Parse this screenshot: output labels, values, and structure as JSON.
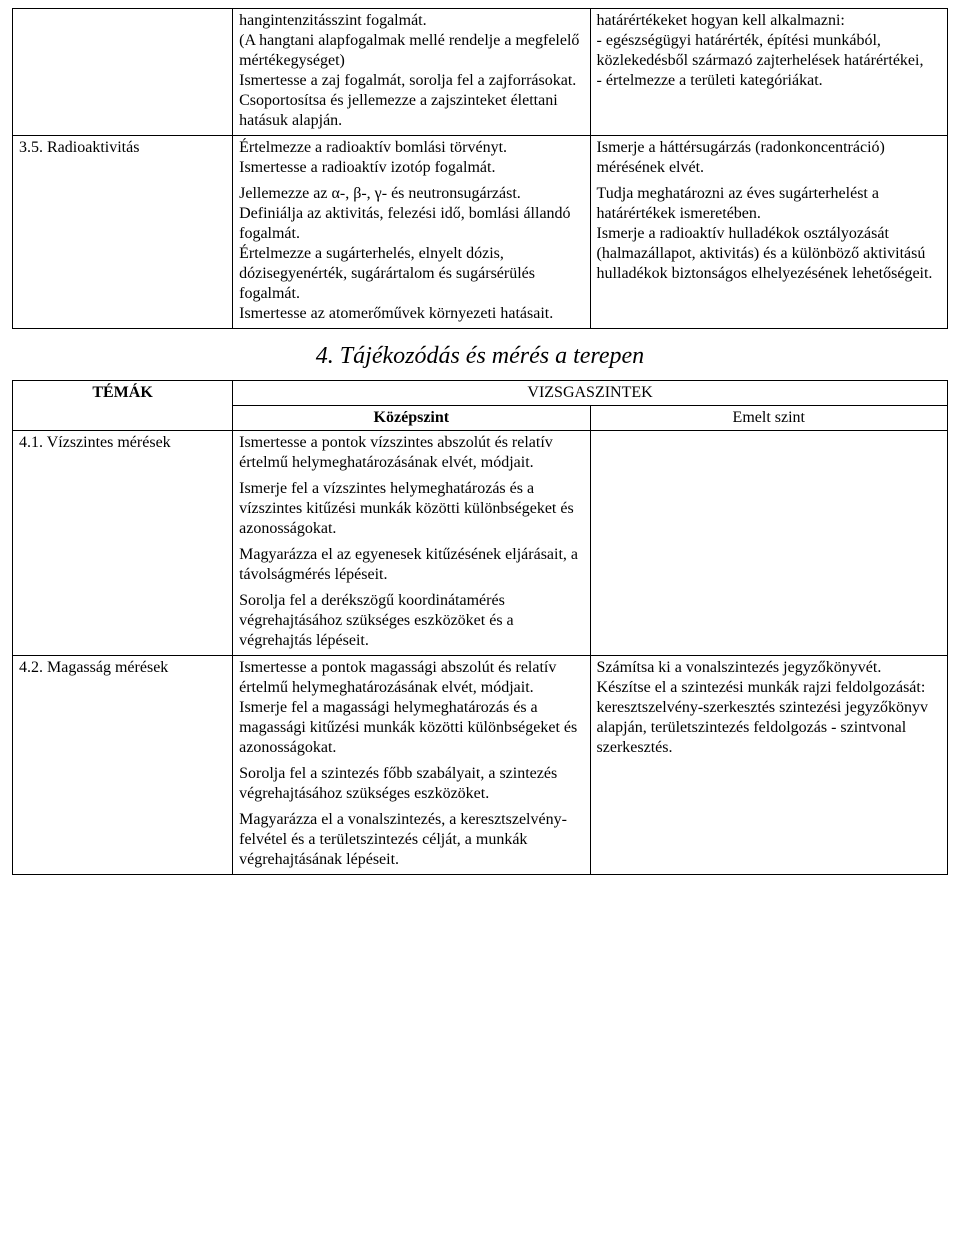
{
  "table1": {
    "row1": {
      "mid": "hangintenzitásszint fogalmát.\n(A hangtani alapfogalmak mellé rendelje a megfelelő mértékegységet)\nIsmertesse a zaj fogalmát, sorolja fel a zajforrásokat.\nCsoportosítsa és jellemezze a zajszinteket élettani hatásuk alapján.",
      "right": "határértékeket hogyan kell alkalmazni:\n- egészségügyi határérték, építési munkából, közlekedésből származó zajterhelések határértékei,\n- értelmezze a területi kategóriákat."
    },
    "row2": {
      "topic": "3.5. Radioaktivitás",
      "mid1": " Értelmezze a radioaktív bomlási törvényt.\nIsmertesse a radioaktív izotóp fogalmát.",
      "mid2": " Jellemezze az α-, β-, γ- és neutronsugárzást.\nDefiniálja az aktivitás, felezési idő, bomlási állandó fogalmát.\nÉrtelmezze a sugárterhelés, elnyelt dózis, dózisegyenérték, sugárártalom és sugársérülés fogalmát.\nIsmertesse az atomerőművek környezeti hatásait.",
      "right1": " Ismerje a háttérsugárzás (radonkoncentráció) mérésének elvét.",
      "right2": " Tudja meghatározni az éves sugárterhelést a határértékek ismeretében.\nIsmerje a radioaktív hulladékok osztályozását (halmazállapot, aktivitás) és a különböző aktivitású hulladékok biztonságos elhelyezésének lehetőségeit."
    }
  },
  "section_title": "4. Tájékozódás és mérés a terepen",
  "table2": {
    "headers": {
      "topics": "TÉMÁK",
      "levels": "VIZSGASZINTEK",
      "mid": "Középszint",
      "right": "Emelt szint"
    },
    "row1": {
      "topic": "4.1. Vízszintes mérések",
      "mid_p1": " Ismertesse a pontok vízszintes abszolút és relatív értelmű helymeghatározásának elvét, módjait.",
      "mid_p2": " Ismerje fel a vízszintes helymeghatározás és a vízszintes kitűzési munkák közötti különbségeket és azonosságokat.",
      "mid_p3": " Magyarázza el az egyenesek kitűzésének eljárásait, a távolságmérés lépéseit.",
      "mid_p4": " Sorolja fel a derékszögű koordinátamérés végrehajtásához szükséges eszközöket és a végrehajtás lépéseit.",
      "right": ""
    },
    "row2": {
      "topic": "4.2. Magasság mérések",
      "mid_p1": " Ismertesse a pontok magassági abszolút és relatív értelmű helymeghatározásának elvét, módjait.\nIsmerje fel a magassági helymeghatározás és a magassági kitűzési munkák közötti különbségeket és azonosságokat.",
      "mid_p2": " Sorolja fel a szintezés főbb szabályait, a szintezés végrehajtásához szükséges eszközöket.",
      "mid_p3": " Magyarázza el a vonalszintezés, a keresztszelvény-felvétel és a területszintezés célját, a munkák végrehajtásának lépéseit.",
      "right": " Számítsa ki a vonalszintezés jegyzőkönyvét.\nKészítse el a szintezési munkák rajzi feldolgozását: keresztszelvény-szerkesztés szintezési jegyzőkönyv alapján, területszintezés feldolgozás - szintvonal szerkesztés."
    }
  }
}
